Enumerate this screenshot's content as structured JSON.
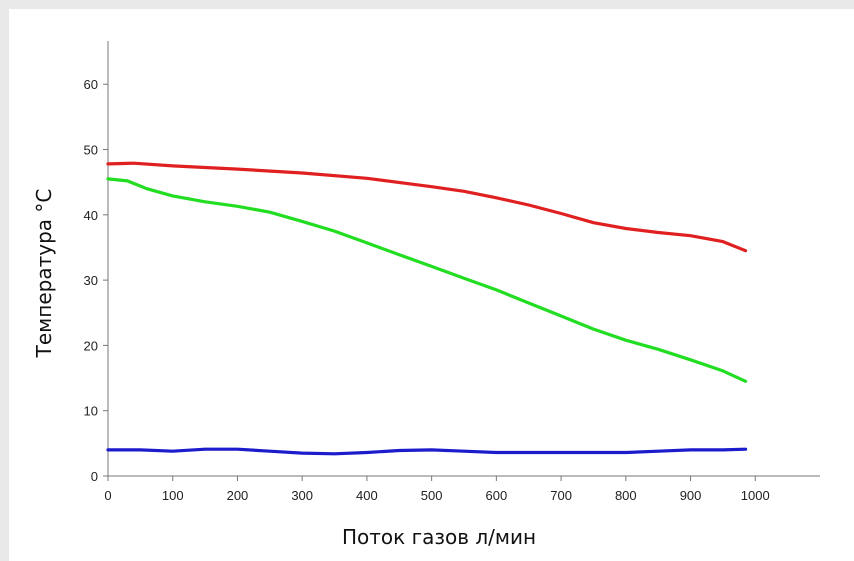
{
  "chart_data": {
    "type": "line",
    "title": "",
    "xlabel": "Поток газов л/мин",
    "ylabel": "Температура °C",
    "xlim": [
      0,
      1100
    ],
    "ylim": [
      0,
      68
    ],
    "x_ticks": [
      "0",
      "100",
      "200",
      "300",
      "400",
      "500",
      "600",
      "700",
      "800",
      "900",
      "1000"
    ],
    "y_ticks": [
      "0",
      "10",
      "20",
      "30",
      "40",
      "50",
      "60"
    ],
    "grid": false,
    "legend": "none",
    "series": [
      {
        "color": "#e02020",
        "x": [
          0,
          40,
          100,
          200,
          300,
          400,
          500,
          550,
          600,
          650,
          700,
          750,
          800,
          850,
          900,
          950,
          985
        ],
        "y": [
          47.8,
          47.9,
          47.5,
          47.0,
          46.4,
          45.6,
          44.3,
          43.6,
          42.6,
          41.5,
          40.2,
          38.8,
          37.9,
          37.3,
          36.8,
          35.9,
          34.5
        ]
      },
      {
        "color": "#22dd22",
        "x": [
          0,
          30,
          60,
          100,
          150,
          200,
          250,
          300,
          350,
          400,
          450,
          500,
          550,
          600,
          650,
          700,
          750,
          800,
          850,
          900,
          950,
          985
        ],
        "y": [
          45.5,
          45.2,
          44.0,
          42.9,
          42.0,
          41.3,
          40.4,
          39.0,
          37.5,
          35.7,
          33.9,
          32.1,
          30.3,
          28.5,
          26.5,
          24.5,
          22.5,
          20.8,
          19.4,
          17.8,
          16.1,
          14.5
        ]
      },
      {
        "color": "#1c1ccc",
        "x": [
          0,
          50,
          100,
          150,
          200,
          250,
          300,
          350,
          400,
          450,
          500,
          550,
          600,
          650,
          700,
          750,
          800,
          850,
          900,
          950,
          985
        ],
        "y": [
          4.0,
          4.0,
          3.8,
          4.1,
          4.1,
          3.8,
          3.5,
          3.4,
          3.6,
          3.9,
          4.0,
          3.8,
          3.6,
          3.6,
          3.6,
          3.6,
          3.6,
          3.8,
          4.0,
          4.0,
          4.1
        ]
      }
    ]
  }
}
